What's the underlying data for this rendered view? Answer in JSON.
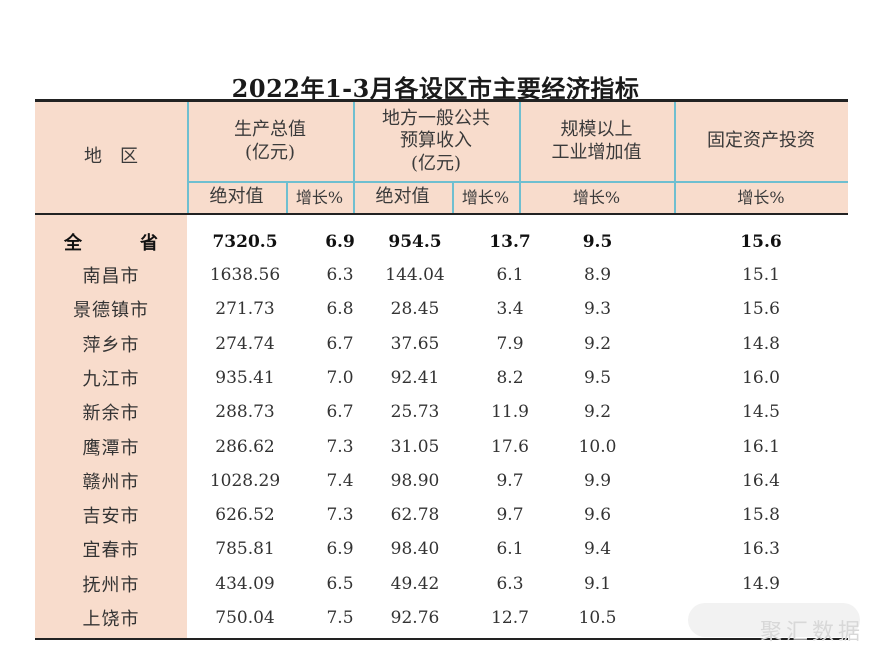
{
  "title": "2022年1-3月各设区市主要经济指标",
  "header": {
    "region": "地　区",
    "gdp": "生产总值\n(亿元)",
    "budget": "地方一般公共\n预算收入\n(亿元)",
    "industry": "规模以上\n工业增加值",
    "investment": "固定资产投资",
    "absolute": "绝对值",
    "growth": "增长%"
  },
  "rows": [
    {
      "name": "全　省",
      "gdp_abs": "7320.5",
      "gdp_g": "6.9",
      "bud_abs": "954.5",
      "bud_g": "13.7",
      "ind_g": "9.5",
      "inv_g": "15.6"
    },
    {
      "name": "南昌市",
      "gdp_abs": "1638.56",
      "gdp_g": "6.3",
      "bud_abs": "144.04",
      "bud_g": "6.1",
      "ind_g": "8.9",
      "inv_g": "15.1"
    },
    {
      "name": "景德镇市",
      "gdp_abs": "271.73",
      "gdp_g": "6.8",
      "bud_abs": "28.45",
      "bud_g": "3.4",
      "ind_g": "9.3",
      "inv_g": "15.6"
    },
    {
      "name": "萍乡市",
      "gdp_abs": "274.74",
      "gdp_g": "6.7",
      "bud_abs": "37.65",
      "bud_g": "7.9",
      "ind_g": "9.2",
      "inv_g": "14.8"
    },
    {
      "name": "九江市",
      "gdp_abs": "935.41",
      "gdp_g": "7.0",
      "bud_abs": "92.41",
      "bud_g": "8.2",
      "ind_g": "9.5",
      "inv_g": "16.0"
    },
    {
      "name": "新余市",
      "gdp_abs": "288.73",
      "gdp_g": "6.7",
      "bud_abs": "25.73",
      "bud_g": "11.9",
      "ind_g": "9.2",
      "inv_g": "14.5"
    },
    {
      "name": "鹰潭市",
      "gdp_abs": "286.62",
      "gdp_g": "7.3",
      "bud_abs": "31.05",
      "bud_g": "17.6",
      "ind_g": "10.0",
      "inv_g": "16.1"
    },
    {
      "name": "赣州市",
      "gdp_abs": "1028.29",
      "gdp_g": "7.4",
      "bud_abs": "98.90",
      "bud_g": "9.7",
      "ind_g": "9.9",
      "inv_g": "16.4"
    },
    {
      "name": "吉安市",
      "gdp_abs": "626.52",
      "gdp_g": "7.3",
      "bud_abs": "62.78",
      "bud_g": "9.7",
      "ind_g": "9.6",
      "inv_g": "15.8"
    },
    {
      "name": "宜春市",
      "gdp_abs": "785.81",
      "gdp_g": "6.9",
      "bud_abs": "98.40",
      "bud_g": "6.1",
      "ind_g": "9.4",
      "inv_g": "16.3"
    },
    {
      "name": "抚州市",
      "gdp_abs": "434.09",
      "gdp_g": "6.5",
      "bud_abs": "49.42",
      "bud_g": "6.3",
      "ind_g": "9.1",
      "inv_g": "14.9"
    },
    {
      "name": "上饶市",
      "gdp_abs": "750.04",
      "gdp_g": "7.5",
      "bud_abs": "92.76",
      "bud_g": "12.7",
      "ind_g": "10.5",
      "inv_g": ""
    }
  ],
  "watermark": "聚汇数据",
  "colors": {
    "header_bg": "#f8dccc",
    "grid": "#6fbfd0",
    "rule": "#222222"
  }
}
